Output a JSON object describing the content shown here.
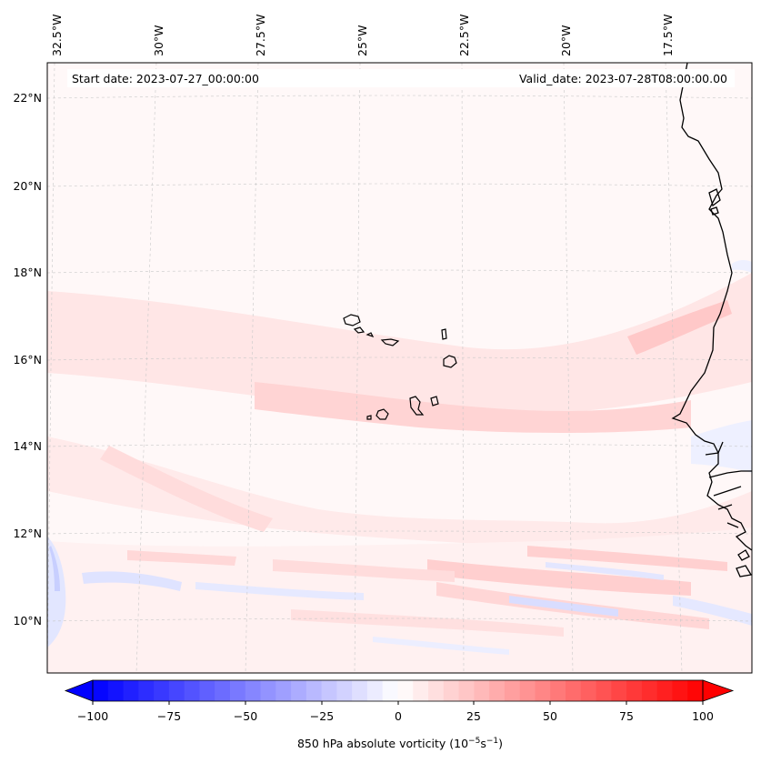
{
  "map": {
    "start_label": "Start date: 2023-07-27_00:00:00",
    "valid_label": "Valid_date: 2023-07-28T08:00:00.00",
    "lon_labels": [
      "32.5°W",
      "30°W",
      "27.5°W",
      "25°W",
      "22.5°W",
      "20°W",
      "17.5°W"
    ],
    "lat_labels": [
      "22°N",
      "20°N",
      "18°N",
      "16°N",
      "14°N",
      "12°N",
      "10°N"
    ]
  },
  "colorbar": {
    "ticks": [
      "−100",
      "−75",
      "−50",
      "−25",
      "0",
      "25",
      "50",
      "75",
      "100"
    ],
    "label": "850 hPa absolute vorticity (10",
    "label_exp1": "−5",
    "label_mid": "s",
    "label_exp2": "−1",
    "label_end": ")",
    "colors": {
      "low": "#0000ff",
      "mid": "#ffffff",
      "high": "#ff0000"
    }
  }
}
